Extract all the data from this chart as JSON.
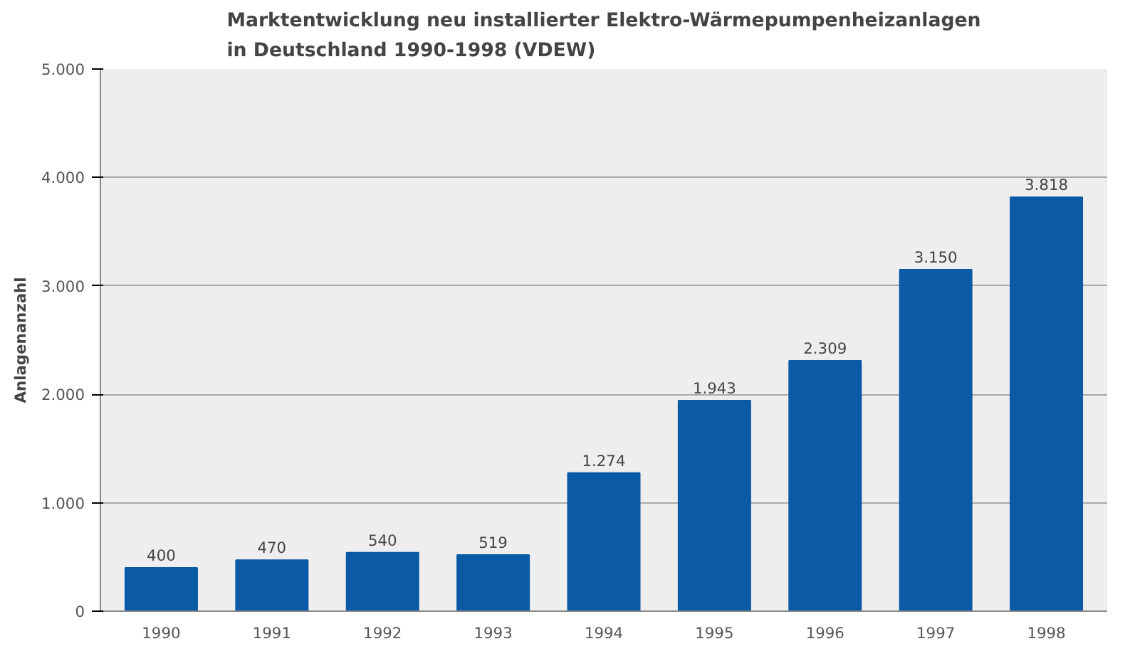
{
  "chart_data": {
    "type": "bar",
    "title": "Marktentwicklung neu installierter Elektro-Wärmepumpenheizanlagen\nin Deutschland 1990-1998 (VDEW)",
    "ylabel": "Anlagenanzahl",
    "categories": [
      "1990",
      "1991",
      "1992",
      "1993",
      "1994",
      "1995",
      "1996",
      "1997",
      "1998"
    ],
    "values": [
      400,
      470,
      540,
      519,
      1274,
      1943,
      2309,
      3150,
      3818
    ],
    "value_labels": [
      "400",
      "470",
      "540",
      "519",
      "1.274",
      "1.943",
      "2.309",
      "3.150",
      "3.818"
    ],
    "color": "#0b5aa6",
    "ylim": [
      0,
      5000
    ],
    "yticks": [
      {
        "value": 0,
        "label": "0"
      },
      {
        "value": 1000,
        "label": "1.000"
      },
      {
        "value": 2000,
        "label": "2.000"
      },
      {
        "value": 3000,
        "label": "3.000"
      },
      {
        "value": 4000,
        "label": "4.000"
      },
      {
        "value": 5000,
        "label": "5.000"
      }
    ],
    "grid": "y"
  }
}
